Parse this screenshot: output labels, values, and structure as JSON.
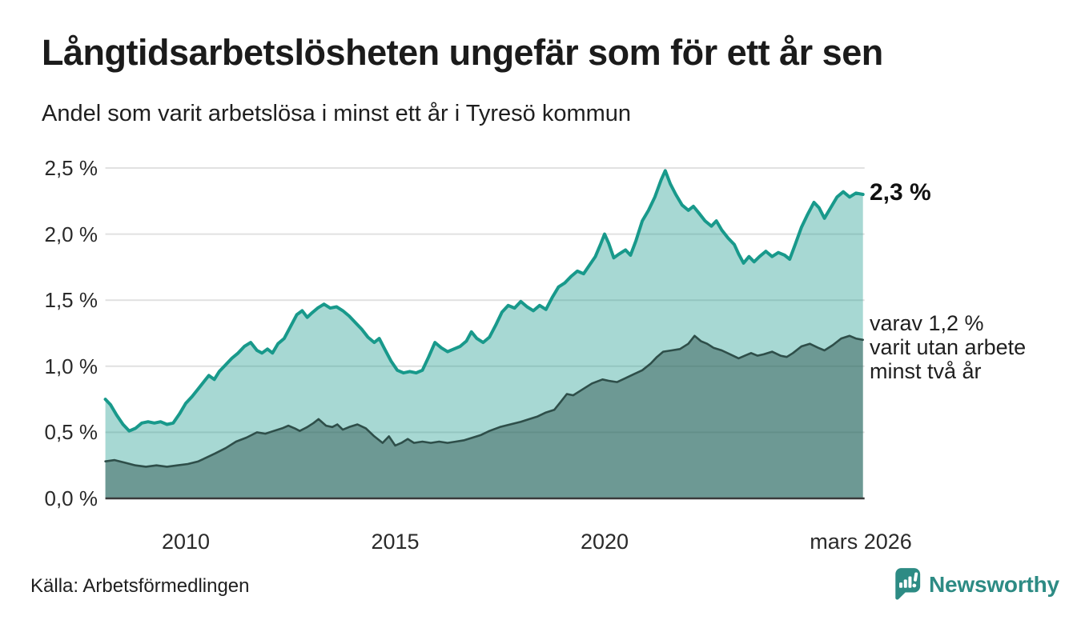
{
  "header": {
    "title": "Långtidsarbetslösheten ungefär som för ett år sen",
    "subtitle": "Andel som varit arbetslösa i minst ett år i Tyresö kommun"
  },
  "annotations": {
    "end_value": "2,3 %",
    "secondary_lines": [
      "varav 1,2 %",
      "varit utan arbete",
      "minst två år"
    ]
  },
  "footer": {
    "source": "Källa: Arbetsförmedlingen",
    "logo_text": "Newsworthy"
  },
  "colors": {
    "accent_teal": "#18998b",
    "area_fill_light": "rgba(24,153,139,0.38)",
    "dark_line": "#2e4e49",
    "area_fill_dark": "rgba(40,78,72,0.45)",
    "grid": "#e1e1e1",
    "axis": "#3a3a3a",
    "text": "#1c1c1c",
    "brand": "#2d8b84"
  },
  "chart_data": {
    "type": "area",
    "title": "Långtidsarbetslösheten ungefär som för ett år sen",
    "subtitle": "Andel som varit arbetslösa i minst ett år i Tyresö kommun",
    "unit": "%",
    "grid": true,
    "x_axis": {
      "range": [
        2008.08,
        2026.17
      ],
      "ticks": [
        {
          "label": "2010",
          "year": 2010
        },
        {
          "label": "2015",
          "year": 2015
        },
        {
          "label": "2020",
          "year": 2020
        },
        {
          "label": "mars 2026",
          "year": 2026.17
        }
      ]
    },
    "y_axis": {
      "range": [
        0,
        2.5
      ],
      "ticks": [
        {
          "label": "0,0 %",
          "value": 0
        },
        {
          "label": "0,5 %",
          "value": 0.5
        },
        {
          "label": "1,0 %",
          "value": 1.0
        },
        {
          "label": "1,5 %",
          "value": 1.5
        },
        {
          "label": "2,0 %",
          "value": 2.0
        },
        {
          "label": "2,5 %",
          "value": 2.5
        }
      ]
    },
    "series": [
      {
        "name": "Andel som varit arbetslösa i minst ett år",
        "end_label": "2,3 %",
        "x": [
          2008.08,
          2008.2,
          2008.35,
          2008.5,
          2008.65,
          2008.8,
          2008.95,
          2009.1,
          2009.25,
          2009.4,
          2009.55,
          2009.7,
          2009.85,
          2010,
          2010.15,
          2010.3,
          2010.45,
          2010.55,
          2010.68,
          2010.8,
          2010.95,
          2011.1,
          2011.25,
          2011.4,
          2011.55,
          2011.7,
          2011.82,
          2011.95,
          2012.07,
          2012.2,
          2012.35,
          2012.5,
          2012.65,
          2012.78,
          2012.9,
          2013,
          2013.15,
          2013.3,
          2013.45,
          2013.6,
          2013.75,
          2013.9,
          2014.05,
          2014.2,
          2014.35,
          2014.5,
          2014.62,
          2014.75,
          2014.9,
          2015.05,
          2015.2,
          2015.35,
          2015.5,
          2015.65,
          2015.8,
          2015.95,
          2016.1,
          2016.25,
          2016.4,
          2016.55,
          2016.7,
          2016.82,
          2016.95,
          2017.1,
          2017.25,
          2017.4,
          2017.55,
          2017.7,
          2017.85,
          2018,
          2018.15,
          2018.3,
          2018.45,
          2018.6,
          2018.75,
          2018.9,
          2019.05,
          2019.2,
          2019.35,
          2019.5,
          2019.65,
          2019.78,
          2019.9,
          2020,
          2020.1,
          2020.22,
          2020.35,
          2020.5,
          2020.62,
          2020.75,
          2020.9,
          2021.05,
          2021.2,
          2021.35,
          2021.45,
          2021.57,
          2021.7,
          2021.85,
          2022,
          2022.12,
          2022.25,
          2022.4,
          2022.55,
          2022.67,
          2022.8,
          2022.95,
          2023.1,
          2023.2,
          2023.32,
          2023.45,
          2023.57,
          2023.7,
          2023.85,
          2024,
          2024.15,
          2024.3,
          2024.42,
          2024.55,
          2024.7,
          2024.85,
          2025,
          2025.12,
          2025.25,
          2025.4,
          2025.55,
          2025.7,
          2025.85,
          2026,
          2026.17
        ],
        "values": [
          0.75,
          0.71,
          0.63,
          0.56,
          0.51,
          0.53,
          0.57,
          0.58,
          0.57,
          0.58,
          0.56,
          0.57,
          0.64,
          0.72,
          0.77,
          0.83,
          0.89,
          0.93,
          0.9,
          0.96,
          1.01,
          1.06,
          1.1,
          1.15,
          1.18,
          1.12,
          1.1,
          1.13,
          1.1,
          1.17,
          1.21,
          1.3,
          1.39,
          1.42,
          1.37,
          1.4,
          1.44,
          1.47,
          1.44,
          1.45,
          1.42,
          1.38,
          1.33,
          1.28,
          1.22,
          1.18,
          1.21,
          1.13,
          1.04,
          0.97,
          0.95,
          0.96,
          0.95,
          0.97,
          1.07,
          1.18,
          1.14,
          1.11,
          1.13,
          1.15,
          1.19,
          1.26,
          1.21,
          1.18,
          1.22,
          1.31,
          1.41,
          1.46,
          1.44,
          1.49,
          1.45,
          1.42,
          1.46,
          1.43,
          1.52,
          1.6,
          1.63,
          1.68,
          1.72,
          1.7,
          1.77,
          1.83,
          1.92,
          2,
          1.93,
          1.82,
          1.85,
          1.88,
          1.84,
          1.95,
          2.1,
          2.18,
          2.28,
          2.41,
          2.48,
          2.38,
          2.3,
          2.22,
          2.18,
          2.21,
          2.16,
          2.1,
          2.06,
          2.1,
          2.03,
          1.97,
          1.92,
          1.85,
          1.78,
          1.83,
          1.79,
          1.83,
          1.87,
          1.83,
          1.86,
          1.84,
          1.81,
          1.92,
          2.05,
          2.15,
          2.24,
          2.2,
          2.12,
          2.2,
          2.28,
          2.32,
          2.28,
          2.31,
          2.3
        ]
      },
      {
        "name": "varav varit utan arbete minst två år",
        "end_label": "varav 1,2 %",
        "x": [
          2008.08,
          2008.3,
          2008.55,
          2008.8,
          2009.05,
          2009.3,
          2009.55,
          2009.8,
          2010.05,
          2010.3,
          2010.5,
          2010.7,
          2010.95,
          2011.2,
          2011.45,
          2011.7,
          2011.9,
          2012.1,
          2012.3,
          2012.45,
          2012.6,
          2012.72,
          2012.9,
          2013.05,
          2013.17,
          2013.35,
          2013.5,
          2013.62,
          2013.75,
          2013.9,
          2014.1,
          2014.3,
          2014.5,
          2014.7,
          2014.85,
          2015,
          2015.15,
          2015.3,
          2015.45,
          2015.65,
          2015.85,
          2016.05,
          2016.25,
          2016.45,
          2016.65,
          2016.85,
          2017.05,
          2017.25,
          2017.5,
          2017.75,
          2018,
          2018.2,
          2018.4,
          2018.6,
          2018.8,
          2018.95,
          2019.1,
          2019.25,
          2019.4,
          2019.55,
          2019.7,
          2019.95,
          2020.1,
          2020.3,
          2020.5,
          2020.7,
          2020.9,
          2021.1,
          2021.25,
          2021.4,
          2021.6,
          2021.8,
          2022,
          2022.15,
          2022.3,
          2022.45,
          2022.6,
          2022.8,
          2023,
          2023.2,
          2023.35,
          2023.5,
          2023.65,
          2023.8,
          2024,
          2024.2,
          2024.35,
          2024.5,
          2024.7,
          2024.9,
          2025.1,
          2025.25,
          2025.45,
          2025.65,
          2025.85,
          2026,
          2026.17
        ],
        "values": [
          0.28,
          0.29,
          0.27,
          0.25,
          0.24,
          0.25,
          0.24,
          0.25,
          0.26,
          0.28,
          0.31,
          0.34,
          0.38,
          0.43,
          0.46,
          0.5,
          0.49,
          0.51,
          0.53,
          0.55,
          0.53,
          0.51,
          0.54,
          0.57,
          0.6,
          0.55,
          0.54,
          0.56,
          0.52,
          0.54,
          0.56,
          0.53,
          0.47,
          0.42,
          0.47,
          0.4,
          0.42,
          0.45,
          0.42,
          0.43,
          0.42,
          0.43,
          0.42,
          0.43,
          0.44,
          0.46,
          0.48,
          0.51,
          0.54,
          0.56,
          0.58,
          0.6,
          0.62,
          0.65,
          0.67,
          0.73,
          0.79,
          0.78,
          0.81,
          0.84,
          0.87,
          0.9,
          0.89,
          0.88,
          0.91,
          0.94,
          0.97,
          1.02,
          1.07,
          1.11,
          1.12,
          1.13,
          1.17,
          1.23,
          1.19,
          1.17,
          1.14,
          1.12,
          1.09,
          1.06,
          1.08,
          1.1,
          1.08,
          1.09,
          1.11,
          1.08,
          1.07,
          1.1,
          1.15,
          1.17,
          1.14,
          1.12,
          1.16,
          1.21,
          1.23,
          1.21,
          1.2
        ]
      }
    ]
  }
}
